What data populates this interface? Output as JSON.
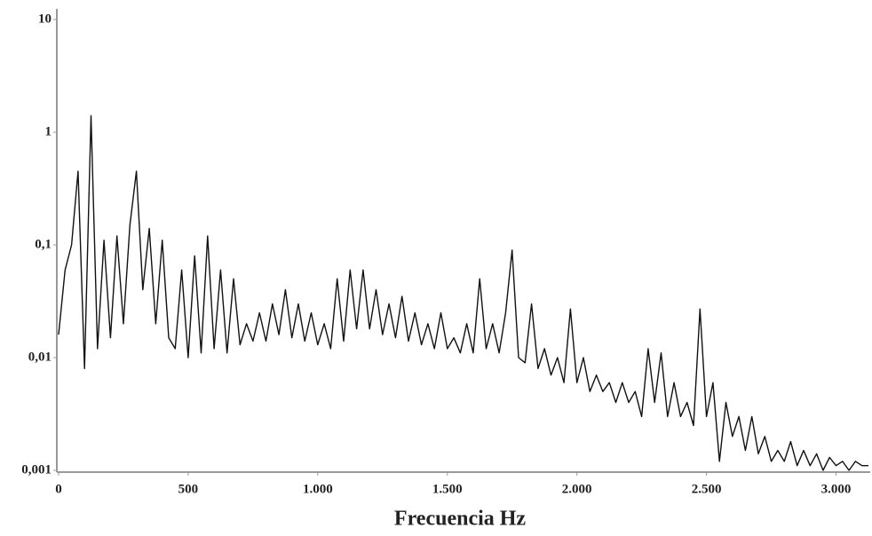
{
  "chart_data": {
    "type": "line",
    "x_label": "Frecuencia  Hz",
    "log_y": true,
    "color": "#111111",
    "xlim": [
      0,
      3125
    ],
    "ylim": [
      0.001,
      10
    ],
    "xticks": [
      0,
      500,
      {
        "value": 1000,
        "label": "1.000"
      },
      {
        "value": 1500,
        "label": "1.500"
      },
      {
        "value": 2000,
        "label": "2.000"
      },
      {
        "value": 2500,
        "label": "2.500"
      },
      {
        "value": 3000,
        "label": "3.000"
      }
    ],
    "yticks": [
      {
        "value": 0.001,
        "label": "0,001"
      },
      {
        "value": 0.01,
        "label": "0,01"
      },
      {
        "value": 0.1,
        "label": "0,1"
      },
      1,
      10
    ],
    "x": [
      0,
      25,
      50,
      75,
      100,
      125,
      150,
      175,
      200,
      225,
      250,
      275,
      300,
      325,
      350,
      375,
      400,
      425,
      450,
      475,
      500,
      525,
      550,
      575,
      600,
      625,
      650,
      675,
      700,
      725,
      750,
      775,
      800,
      825,
      850,
      875,
      900,
      925,
      950,
      975,
      1000,
      1025,
      1050,
      1075,
      1100,
      1125,
      1150,
      1175,
      1200,
      1225,
      1250,
      1275,
      1300,
      1325,
      1350,
      1375,
      1400,
      1425,
      1450,
      1475,
      1500,
      1525,
      1550,
      1575,
      1600,
      1625,
      1650,
      1675,
      1700,
      1725,
      1750,
      1775,
      1800,
      1825,
      1850,
      1875,
      1900,
      1925,
      1950,
      1975,
      2000,
      2025,
      2050,
      2075,
      2100,
      2125,
      2150,
      2175,
      2200,
      2225,
      2250,
      2275,
      2300,
      2325,
      2350,
      2375,
      2400,
      2425,
      2450,
      2475,
      2500,
      2525,
      2550,
      2575,
      2600,
      2625,
      2650,
      2675,
      2700,
      2725,
      2750,
      2775,
      2800,
      2825,
      2850,
      2875,
      2900,
      2925,
      2950,
      2975,
      3000,
      3025,
      3050,
      3075,
      3100,
      3125
    ],
    "values": [
      0.016,
      0.06,
      0.1,
      0.45,
      0.008,
      1.4,
      0.012,
      0.11,
      0.015,
      0.12,
      0.02,
      0.15,
      0.45,
      0.04,
      0.14,
      0.02,
      0.11,
      0.015,
      0.012,
      0.06,
      0.01,
      0.08,
      0.011,
      0.12,
      0.012,
      0.06,
      0.011,
      0.05,
      0.013,
      0.02,
      0.014,
      0.025,
      0.014,
      0.03,
      0.016,
      0.04,
      0.015,
      0.03,
      0.014,
      0.025,
      0.013,
      0.02,
      0.012,
      0.05,
      0.014,
      0.06,
      0.018,
      0.06,
      0.018,
      0.04,
      0.016,
      0.03,
      0.015,
      0.035,
      0.014,
      0.025,
      0.013,
      0.02,
      0.012,
      0.025,
      0.012,
      0.015,
      0.011,
      0.02,
      0.011,
      0.05,
      0.012,
      0.02,
      0.011,
      0.025,
      0.09,
      0.01,
      0.009,
      0.03,
      0.008,
      0.012,
      0.007,
      0.01,
      0.006,
      0.027,
      0.006,
      0.01,
      0.005,
      0.007,
      0.005,
      0.006,
      0.004,
      0.006,
      0.004,
      0.005,
      0.003,
      0.012,
      0.004,
      0.011,
      0.003,
      0.006,
      0.003,
      0.004,
      0.0025,
      0.027,
      0.003,
      0.006,
      0.0012,
      0.004,
      0.002,
      0.003,
      0.0015,
      0.003,
      0.0014,
      0.002,
      0.0012,
      0.0015,
      0.0012,
      0.0018,
      0.0011,
      0.0015,
      0.0011,
      0.0014,
      0.001,
      0.0013,
      0.0011,
      0.0012,
      0.001,
      0.0012,
      0.0011,
      0.0011
    ]
  }
}
